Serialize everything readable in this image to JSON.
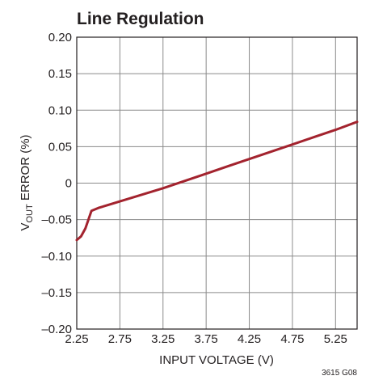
{
  "chart_data": {
    "type": "line",
    "title": "Line Regulation",
    "xlabel": "INPUT VOLTAGE (V)",
    "ylabel_main": "V",
    "ylabel_sub": "OUT",
    "ylabel_rest": " ERROR (%)",
    "xlim": [
      2.25,
      5.5
    ],
    "ylim": [
      -0.2,
      0.2
    ],
    "x_ticks": [
      2.25,
      2.75,
      3.25,
      3.75,
      4.25,
      4.75,
      5.25
    ],
    "x_tick_labels": [
      "2.25",
      "2.75",
      "3.25",
      "3.75",
      "4.25",
      "4.75",
      "5.25"
    ],
    "y_ticks": [
      0.2,
      0.15,
      0.1,
      0.05,
      0,
      -0.05,
      -0.1,
      -0.15,
      -0.2
    ],
    "y_tick_labels": [
      "0.20",
      "0.15",
      "0.10",
      "0.05",
      "0",
      "–0.05",
      "–0.10",
      "–0.15",
      "–0.20"
    ],
    "grid": true,
    "series": [
      {
        "color": "#a3232e",
        "x": [
          2.25,
          2.3,
          2.35,
          2.42,
          2.5,
          2.75,
          3.0,
          3.25,
          3.5,
          3.75,
          4.0,
          4.25,
          4.5,
          4.75,
          5.0,
          5.25,
          5.5
        ],
        "y": [
          -0.078,
          -0.073,
          -0.062,
          -0.038,
          -0.034,
          -0.025,
          -0.016,
          -0.007,
          0.003,
          0.013,
          0.023,
          0.033,
          0.043,
          0.053,
          0.063,
          0.073,
          0.084
        ]
      }
    ],
    "figure_id": "3615 G08"
  }
}
